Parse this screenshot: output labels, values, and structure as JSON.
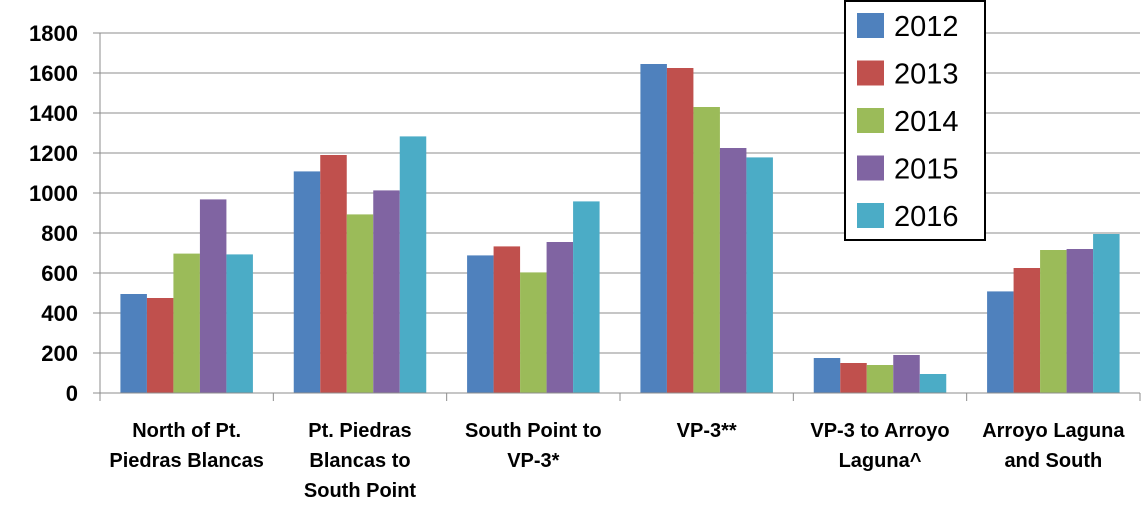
{
  "chart_data": {
    "type": "bar",
    "categories": [
      [
        "North of Pt.",
        "Piedras Blancas"
      ],
      [
        "Pt. Piedras",
        "Blancas to",
        "South Point"
      ],
      [
        "South Point to",
        "VP-3*"
      ],
      [
        "VP-3**"
      ],
      [
        "VP-3 to Arroyo",
        "Laguna^"
      ],
      [
        "Arroyo Laguna",
        "and South"
      ]
    ],
    "series": [
      {
        "name": "2012",
        "color": "#4F81BD",
        "values": [
          495,
          1108,
          688,
          1645,
          175,
          508
        ]
      },
      {
        "name": "2013",
        "color": "#C0504D",
        "values": [
          475,
          1190,
          733,
          1625,
          150,
          625
        ]
      },
      {
        "name": "2014",
        "color": "#9BBB59",
        "values": [
          697,
          893,
          603,
          1430,
          140,
          715
        ]
      },
      {
        "name": "2015",
        "color": "#8064A2",
        "values": [
          968,
          1013,
          755,
          1225,
          190,
          720
        ]
      },
      {
        "name": "2016",
        "color": "#4BACC6",
        "values": [
          693,
          1283,
          958,
          1178,
          95,
          795
        ]
      }
    ],
    "ylim": [
      0,
      1800
    ],
    "yticks": [
      "0",
      "200",
      "400",
      "600",
      "800",
      "1000",
      "1200",
      "1400",
      "1600",
      "1800"
    ],
    "grid": true,
    "legend_position": "top-right"
  }
}
